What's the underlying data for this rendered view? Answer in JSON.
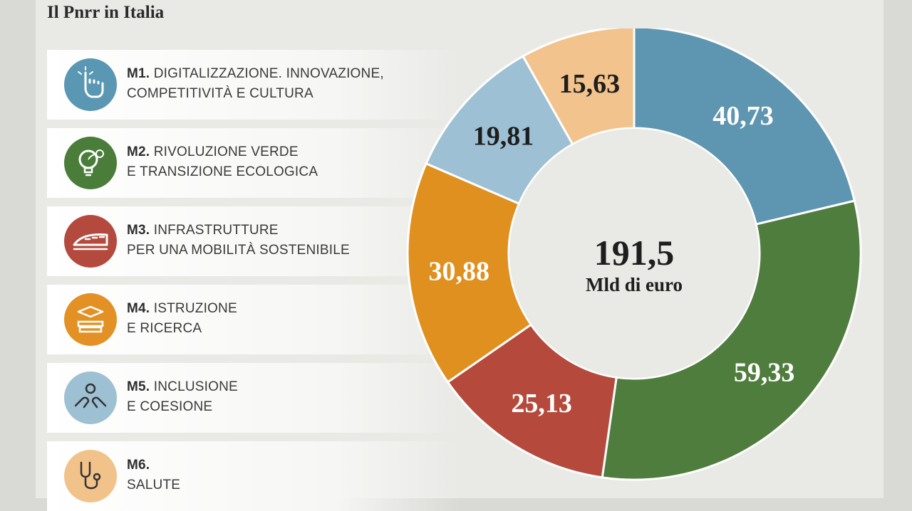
{
  "title": "Il Pnrr in Italia",
  "missions": [
    {
      "code": "M1.",
      "line1": "DIGITALIZZAZIONE. INNOVAZIONE,",
      "line2": "COMPETITIVITÀ E CULTURA",
      "color": "#5a97b2",
      "icon": "pointing-hand-icon"
    },
    {
      "code": "M2.",
      "line1": "RIVOLUZIONE VERDE",
      "line2": "E TRANSIZIONE ECOLOGICA",
      "color": "#4a7d3a",
      "icon": "eco-lightbulb-icon"
    },
    {
      "code": "M3.",
      "line1": "INFRASTRUTTURE",
      "line2": "PER UNA MOBILITÀ SOSTENIBILE",
      "color": "#b34a3d",
      "icon": "train-icon"
    },
    {
      "code": "M4.",
      "line1": "ISTRUZIONE",
      "line2": "E RICERCA",
      "color": "#e39124",
      "icon": "graduation-books-icon"
    },
    {
      "code": "M5.",
      "line1": "INCLUSIONE",
      "line2": "E COESIONE",
      "color": "#9ec0d3",
      "icon": "helping-hands-icon"
    },
    {
      "code": "M6.",
      "line1": "",
      "line2": "SALUTE",
      "color": "#f2c28b",
      "icon": "stethoscope-icon"
    }
  ],
  "chart_data": {
    "type": "pie",
    "style": "donut",
    "categories": [
      "M1",
      "M2",
      "M3",
      "M4",
      "M5",
      "M6"
    ],
    "values": [
      40.73,
      59.33,
      25.13,
      30.88,
      19.81,
      15.63
    ],
    "labels": [
      "40,73",
      "59,33",
      "25,13",
      "30,88",
      "19,81",
      "15,63"
    ],
    "colors": [
      "#5e95b0",
      "#4f7d3d",
      "#b54a3c",
      "#e0901f",
      "#9dc0d4",
      "#f2c38c"
    ],
    "label_colors": [
      "#ffffff",
      "#ffffff",
      "#ffffff",
      "#ffffff",
      "#1e1e1e",
      "#1e1e1e"
    ],
    "center_value": "191,5",
    "center_unit": "Mld di euro"
  }
}
